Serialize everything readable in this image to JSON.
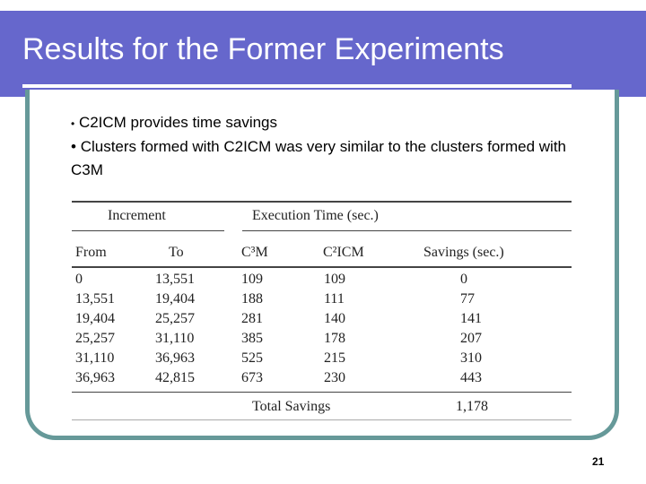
{
  "slide": {
    "title": "Results for the Former Experiments",
    "bullets": [
      {
        "marker": "•",
        "text": "C2ICM provides time savings"
      },
      {
        "marker": "•",
        "text": "Clusters formed with C2ICM was very similar to the clusters formed with C3M"
      }
    ],
    "page_number": "21",
    "colors": {
      "header": "#6667cc",
      "frame": "#669999"
    }
  },
  "table": {
    "group_headers": [
      "Increment",
      "Execution Time (sec.)"
    ],
    "columns": [
      "From",
      "To",
      "C³M",
      "C²ICM",
      "Savings (sec.)"
    ],
    "rows": [
      [
        "0",
        "13,551",
        "109",
        "109",
        "0"
      ],
      [
        "13,551",
        "19,404",
        "188",
        "111",
        "77"
      ],
      [
        "19,404",
        "25,257",
        "281",
        "140",
        "141"
      ],
      [
        "25,257",
        "31,110",
        "385",
        "178",
        "207"
      ],
      [
        "31,110",
        "36,963",
        "525",
        "215",
        "310"
      ],
      [
        "36,963",
        "42,815",
        "673",
        "230",
        "443"
      ]
    ],
    "total_label": "Total Savings",
    "total_value": "1,178"
  }
}
